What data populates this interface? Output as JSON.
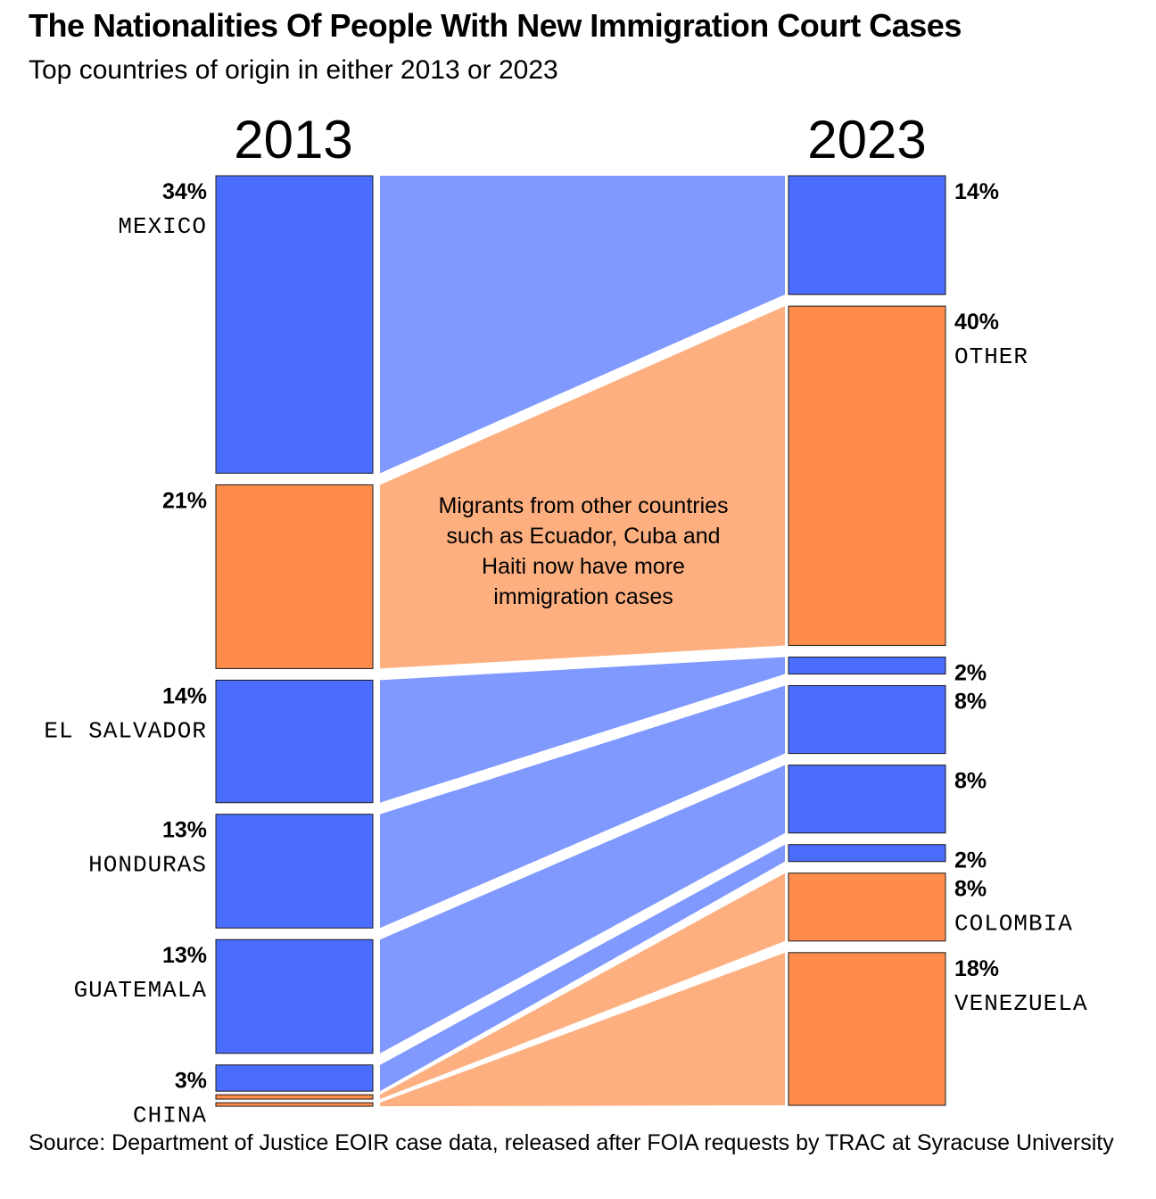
{
  "title": "The Nationalities Of People With New Immigration Court Cases",
  "subtitle": "Top countries of origin in either 2013 or 2023",
  "source": "Source: Department of Justice EOIR case data, released after FOIA requests by TRAC at Syracuse University",
  "chart_data": {
    "type": "slope-stacked-bar",
    "title": "The Nationalities Of People With New Immigration Court Cases",
    "subtitle": "Top countries of origin in either 2013 or 2023",
    "columns": [
      "2013",
      "2023"
    ],
    "unit": "% of new immigration court cases",
    "annotation": [
      "Migrants from other countries",
      "such as Ecuador, Cuba and",
      "Haiti now have more",
      "immigration cases"
    ],
    "colors": {
      "featured": "#4A6CFF",
      "featured_band": "#7F99FF",
      "other": "#FF8C4A",
      "other_band": "#FDAF80"
    },
    "categories": [
      {
        "name": "Mexico",
        "group": "featured",
        "v2013": 34,
        "v2023": 14,
        "label2013": "34%",
        "label2023": "14%",
        "name_label_2013": "MEXICO",
        "name_label_2023": ""
      },
      {
        "name": "Other",
        "group": "other",
        "v2013": 21,
        "v2023": 40,
        "label2013": "21%",
        "label2023": "40%",
        "name_label_2013": "",
        "name_label_2023": "OTHER"
      },
      {
        "name": "El Salvador",
        "group": "featured",
        "v2013": 14,
        "v2023": 2,
        "label2013": "14%",
        "label2023": "2%",
        "name_label_2013": "EL SALVADOR",
        "name_label_2023": ""
      },
      {
        "name": "Honduras",
        "group": "featured",
        "v2013": 13,
        "v2023": 8,
        "label2013": "13%",
        "label2023": "8%",
        "name_label_2013": "HONDURAS",
        "name_label_2023": ""
      },
      {
        "name": "Guatemala",
        "group": "featured",
        "v2013": 13,
        "v2023": 8,
        "label2013": "13%",
        "label2023": "8%",
        "name_label_2013": "GUATEMALA",
        "name_label_2023": ""
      },
      {
        "name": "China",
        "group": "featured",
        "v2013": 3,
        "v2023": 2,
        "label2013": "3%",
        "label2023": "2%",
        "name_label_2013": "CHINA",
        "name_label_2023": ""
      },
      {
        "name": "Colombia",
        "group": "other",
        "v2013": 0.5,
        "v2023": 8,
        "label2013": "",
        "label2023": "8%",
        "name_label_2013": "",
        "name_label_2023": "COLOMBIA"
      },
      {
        "name": "Venezuela",
        "group": "other",
        "v2013": 0.3,
        "v2023": 18,
        "label2013": "",
        "label2023": "18%",
        "name_label_2013": "",
        "name_label_2023": "VENEZUELA"
      }
    ]
  }
}
